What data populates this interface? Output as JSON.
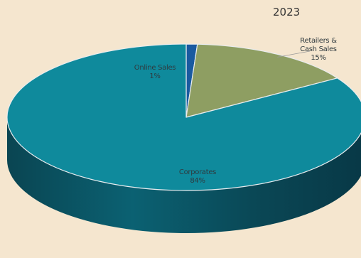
{
  "chart_data": {
    "type": "pie",
    "title": "2023",
    "slices": [
      {
        "name": "Online Sales",
        "label_lines": [
          "Online Sales"
        ],
        "value": 1,
        "value_label": "1%",
        "color": "#1a5aa0"
      },
      {
        "name": "Retailers & Cash Sales",
        "label_lines": [
          "Retailers &",
          "Cash Sales"
        ],
        "value": 15,
        "value_label": "15%",
        "color": "#8e9e62"
      },
      {
        "name": "Corporates",
        "label_lines": [
          "Corporates"
        ],
        "value": 84,
        "value_label": "84%",
        "color": "#0f8a9c"
      }
    ],
    "style": "3d",
    "legend": "none",
    "background": "#f5e6cf",
    "side_color_corporates": "#0b5868",
    "side_color_dark": "#0a3d4a"
  }
}
